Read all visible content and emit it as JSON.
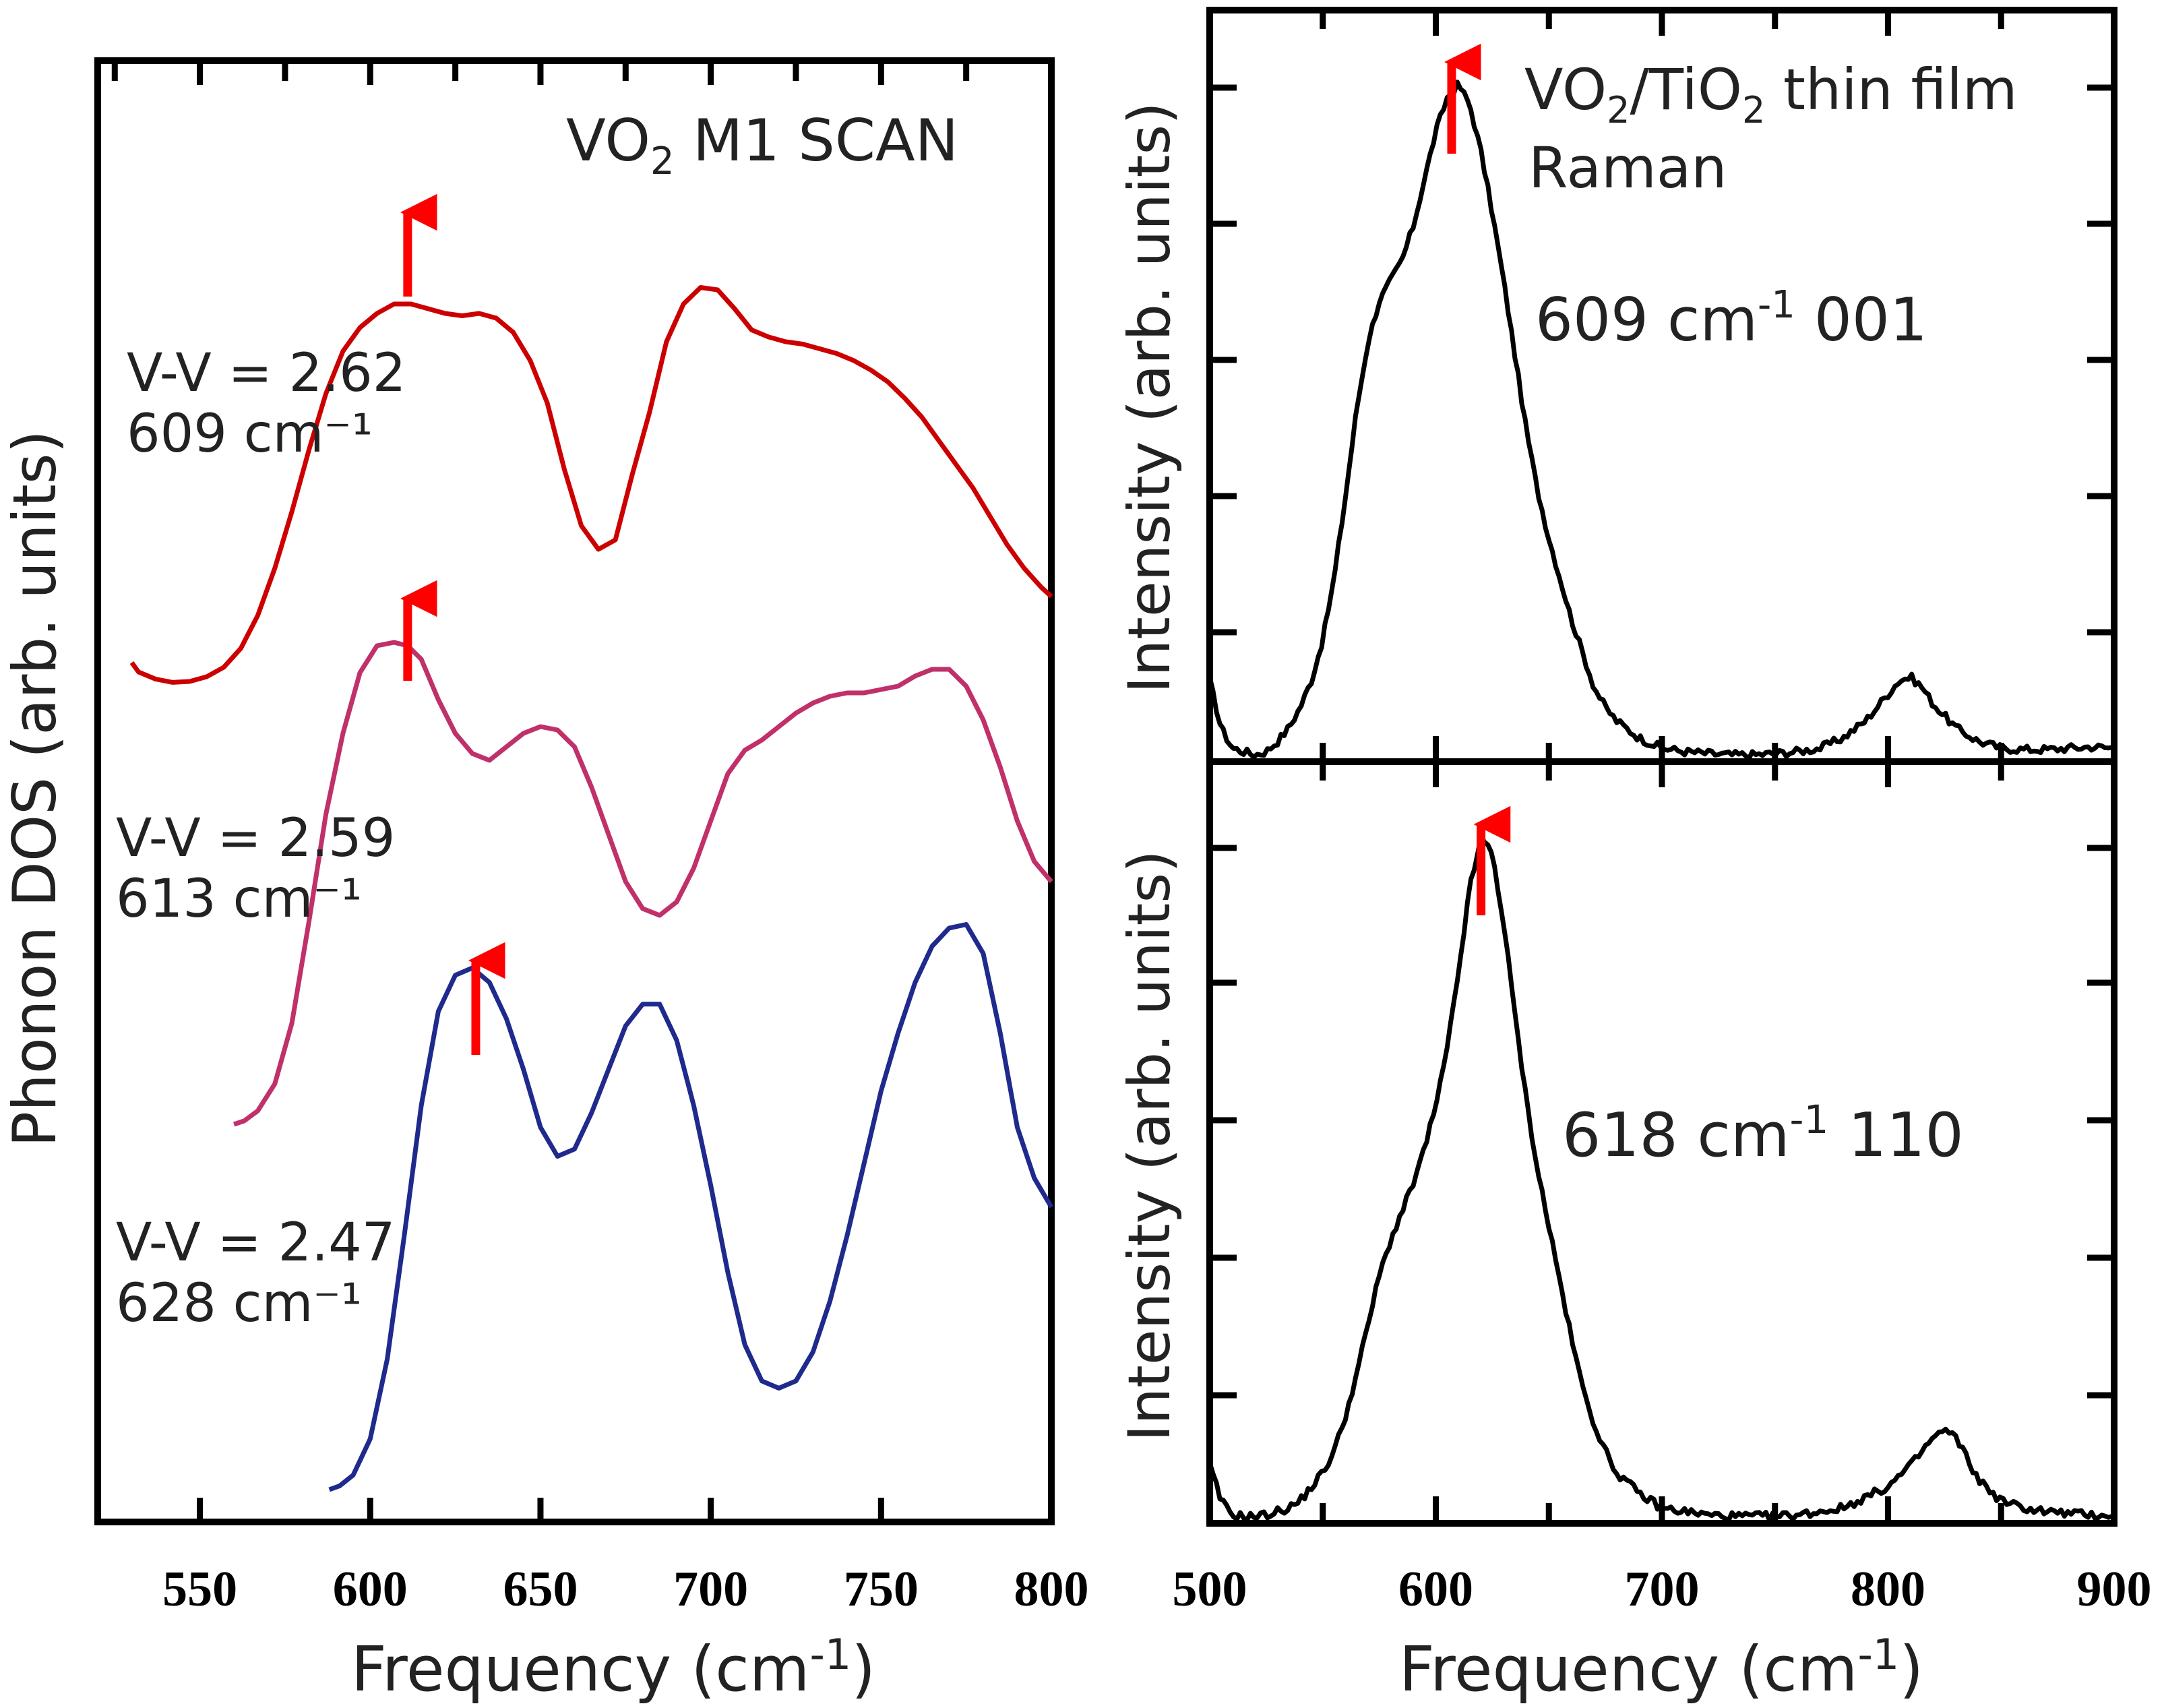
{
  "chart_data": [
    {
      "type": "line",
      "panel": "left",
      "title": "VO₂ M1 SCAN",
      "title_parts": {
        "pre": "VO",
        "sub": "2",
        "post": " M1 SCAN"
      },
      "xlabel": "Frequency (cm⁻¹)",
      "xlabel_parts": {
        "pre": "Frequency (cm",
        "sup": "-1",
        "post": ")"
      },
      "ylabel": "Phonon DOS (arb. units)",
      "xlim": [
        520,
        800
      ],
      "xticks": [
        550,
        600,
        650,
        700,
        750,
        800
      ],
      "grid": false,
      "series": [
        {
          "color": "#cc0000",
          "label_line1": "V-V = 2.62",
          "label_line2": "609 cm⁻¹",
          "peak_marker": 611,
          "x": [
            530,
            532,
            537,
            542,
            547,
            552,
            557,
            562,
            567,
            572,
            577,
            582,
            587,
            592,
            597,
            602,
            607,
            612,
            617,
            622,
            627,
            632,
            637,
            642,
            647,
            652,
            657,
            662,
            667,
            672,
            677,
            682,
            687,
            692,
            697,
            702,
            707,
            712,
            717,
            722,
            727,
            732,
            737,
            742,
            747,
            752,
            757,
            762,
            767,
            772,
            777,
            782,
            787,
            792,
            797,
            800
          ],
          "y": [
            0.05,
            0.03,
            0.015,
            0.008,
            0.01,
            0.02,
            0.04,
            0.08,
            0.15,
            0.25,
            0.37,
            0.5,
            0.62,
            0.71,
            0.76,
            0.79,
            0.81,
            0.81,
            0.8,
            0.79,
            0.785,
            0.79,
            0.78,
            0.75,
            0.69,
            0.6,
            0.46,
            0.34,
            0.29,
            0.31,
            0.45,
            0.58,
            0.73,
            0.81,
            0.845,
            0.84,
            0.8,
            0.755,
            0.74,
            0.73,
            0.725,
            0.715,
            0.705,
            0.69,
            0.67,
            0.645,
            0.61,
            0.57,
            0.52,
            0.47,
            0.42,
            0.36,
            0.3,
            0.25,
            0.21,
            0.19
          ]
        },
        {
          "color": "#c0306a",
          "label_line1": "V-V = 2.59",
          "label_line2": "613 cm⁻¹",
          "peak_marker": 611,
          "x": [
            560,
            563,
            567,
            572,
            577,
            582,
            587,
            592,
            597,
            602,
            607,
            611,
            615,
            620,
            625,
            630,
            635,
            640,
            645,
            650,
            655,
            660,
            665,
            670,
            675,
            680,
            685,
            690,
            695,
            700,
            705,
            710,
            715,
            720,
            725,
            730,
            735,
            740,
            745,
            750,
            755,
            760,
            765,
            770,
            775,
            780,
            785,
            790,
            795,
            800
          ],
          "y": [
            0.0,
            0.005,
            0.02,
            0.06,
            0.15,
            0.3,
            0.46,
            0.58,
            0.67,
            0.71,
            0.715,
            0.71,
            0.69,
            0.63,
            0.58,
            0.55,
            0.54,
            0.56,
            0.58,
            0.59,
            0.585,
            0.56,
            0.5,
            0.43,
            0.36,
            0.32,
            0.31,
            0.33,
            0.38,
            0.45,
            0.52,
            0.555,
            0.57,
            0.59,
            0.61,
            0.625,
            0.635,
            0.64,
            0.64,
            0.645,
            0.65,
            0.665,
            0.675,
            0.675,
            0.65,
            0.6,
            0.53,
            0.45,
            0.39,
            0.36
          ]
        },
        {
          "color": "#1f2a8c",
          "label_line1": "V-V = 2.47",
          "label_line2": "628 cm⁻¹",
          "peak_marker": 631,
          "x": [
            588,
            591,
            595,
            600,
            605,
            610,
            615,
            620,
            625,
            630,
            635,
            640,
            645,
            650,
            655,
            660,
            665,
            670,
            675,
            680,
            685,
            690,
            695,
            700,
            705,
            710,
            715,
            720,
            725,
            730,
            735,
            740,
            745,
            750,
            755,
            760,
            765,
            770,
            775,
            780,
            785,
            790,
            795,
            800
          ],
          "y": [
            0.0,
            0.005,
            0.02,
            0.07,
            0.18,
            0.35,
            0.53,
            0.66,
            0.71,
            0.72,
            0.7,
            0.65,
            0.58,
            0.5,
            0.46,
            0.47,
            0.52,
            0.58,
            0.64,
            0.67,
            0.67,
            0.62,
            0.53,
            0.42,
            0.3,
            0.2,
            0.15,
            0.14,
            0.15,
            0.19,
            0.26,
            0.35,
            0.45,
            0.55,
            0.63,
            0.7,
            0.75,
            0.775,
            0.78,
            0.74,
            0.63,
            0.5,
            0.43,
            0.39
          ]
        }
      ]
    },
    {
      "type": "line",
      "panel": "right-top",
      "legend_text": "VO₂/TiO₂ thin film",
      "legend_parts": {
        "a": "VO",
        "a_sub": "2",
        "b": "/TiO",
        "b_sub": "2",
        "c": " thin film"
      },
      "legend_line2": "Raman",
      "annotation": "609 cm⁻¹ 001",
      "annotation_parts": {
        "pre": "609 cm",
        "sup": "-1",
        "post": " 001"
      },
      "ylabel": "Intensity (arb. units)",
      "xlim": [
        500,
        900
      ],
      "grid": false,
      "color": "#000000",
      "peak_marker": 607,
      "x": [
        500,
        505,
        510,
        515,
        520,
        525,
        530,
        535,
        540,
        545,
        550,
        555,
        560,
        565,
        570,
        575,
        580,
        585,
        590,
        595,
        600,
        605,
        610,
        615,
        620,
        625,
        630,
        635,
        640,
        645,
        650,
        655,
        660,
        665,
        670,
        675,
        680,
        690,
        700,
        710,
        720,
        730,
        740,
        750,
        760,
        770,
        780,
        790,
        800,
        805,
        810,
        815,
        820,
        830,
        840,
        850,
        860,
        870,
        880,
        890,
        900
      ],
      "y": [
        0.12,
        0.05,
        0.02,
        0.015,
        0.01,
        0.015,
        0.03,
        0.05,
        0.08,
        0.12,
        0.18,
        0.27,
        0.39,
        0.52,
        0.62,
        0.68,
        0.71,
        0.74,
        0.79,
        0.86,
        0.93,
        0.98,
        1.0,
        0.97,
        0.9,
        0.81,
        0.71,
        0.6,
        0.49,
        0.4,
        0.33,
        0.27,
        0.21,
        0.16,
        0.11,
        0.08,
        0.06,
        0.035,
        0.02,
        0.015,
        0.012,
        0.01,
        0.01,
        0.012,
        0.015,
        0.02,
        0.035,
        0.06,
        0.1,
        0.12,
        0.125,
        0.11,
        0.085,
        0.05,
        0.03,
        0.02,
        0.018,
        0.018,
        0.02,
        0.022,
        0.02
      ]
    },
    {
      "type": "line",
      "panel": "right-bottom",
      "annotation": "618 cm⁻¹ 110",
      "annotation_parts": {
        "pre": "618 cm",
        "sup": "-1",
        "post": " 110"
      },
      "xlabel": "Frequency (cm⁻¹)",
      "xlabel_parts": {
        "pre": "Frequency (cm",
        "sup": "-1",
        "post": ")"
      },
      "ylabel": "Intensity (arb. units)",
      "xlim": [
        500,
        900
      ],
      "xticks": [
        500,
        600,
        700,
        800,
        900
      ],
      "grid": false,
      "color": "#000000",
      "peak_marker": 620,
      "x": [
        500,
        505,
        510,
        515,
        520,
        525,
        530,
        535,
        540,
        545,
        550,
        555,
        560,
        565,
        570,
        575,
        580,
        585,
        590,
        595,
        600,
        605,
        610,
        615,
        620,
        625,
        630,
        635,
        640,
        645,
        650,
        655,
        660,
        665,
        670,
        675,
        680,
        690,
        700,
        710,
        720,
        730,
        740,
        750,
        760,
        770,
        780,
        790,
        800,
        810,
        815,
        820,
        825,
        830,
        835,
        840,
        850,
        860,
        870,
        880,
        890,
        900
      ],
      "y": [
        0.08,
        0.03,
        0.01,
        0.008,
        0.008,
        0.01,
        0.015,
        0.02,
        0.03,
        0.05,
        0.07,
        0.1,
        0.15,
        0.21,
        0.28,
        0.35,
        0.4,
        0.44,
        0.48,
        0.53,
        0.59,
        0.67,
        0.78,
        0.9,
        0.97,
        0.95,
        0.85,
        0.72,
        0.6,
        0.5,
        0.42,
        0.34,
        0.26,
        0.19,
        0.14,
        0.1,
        0.07,
        0.04,
        0.02,
        0.015,
        0.01,
        0.008,
        0.008,
        0.008,
        0.01,
        0.015,
        0.02,
        0.035,
        0.05,
        0.08,
        0.1,
        0.12,
        0.13,
        0.12,
        0.09,
        0.06,
        0.03,
        0.02,
        0.015,
        0.012,
        0.01,
        0.01
      ]
    }
  ]
}
